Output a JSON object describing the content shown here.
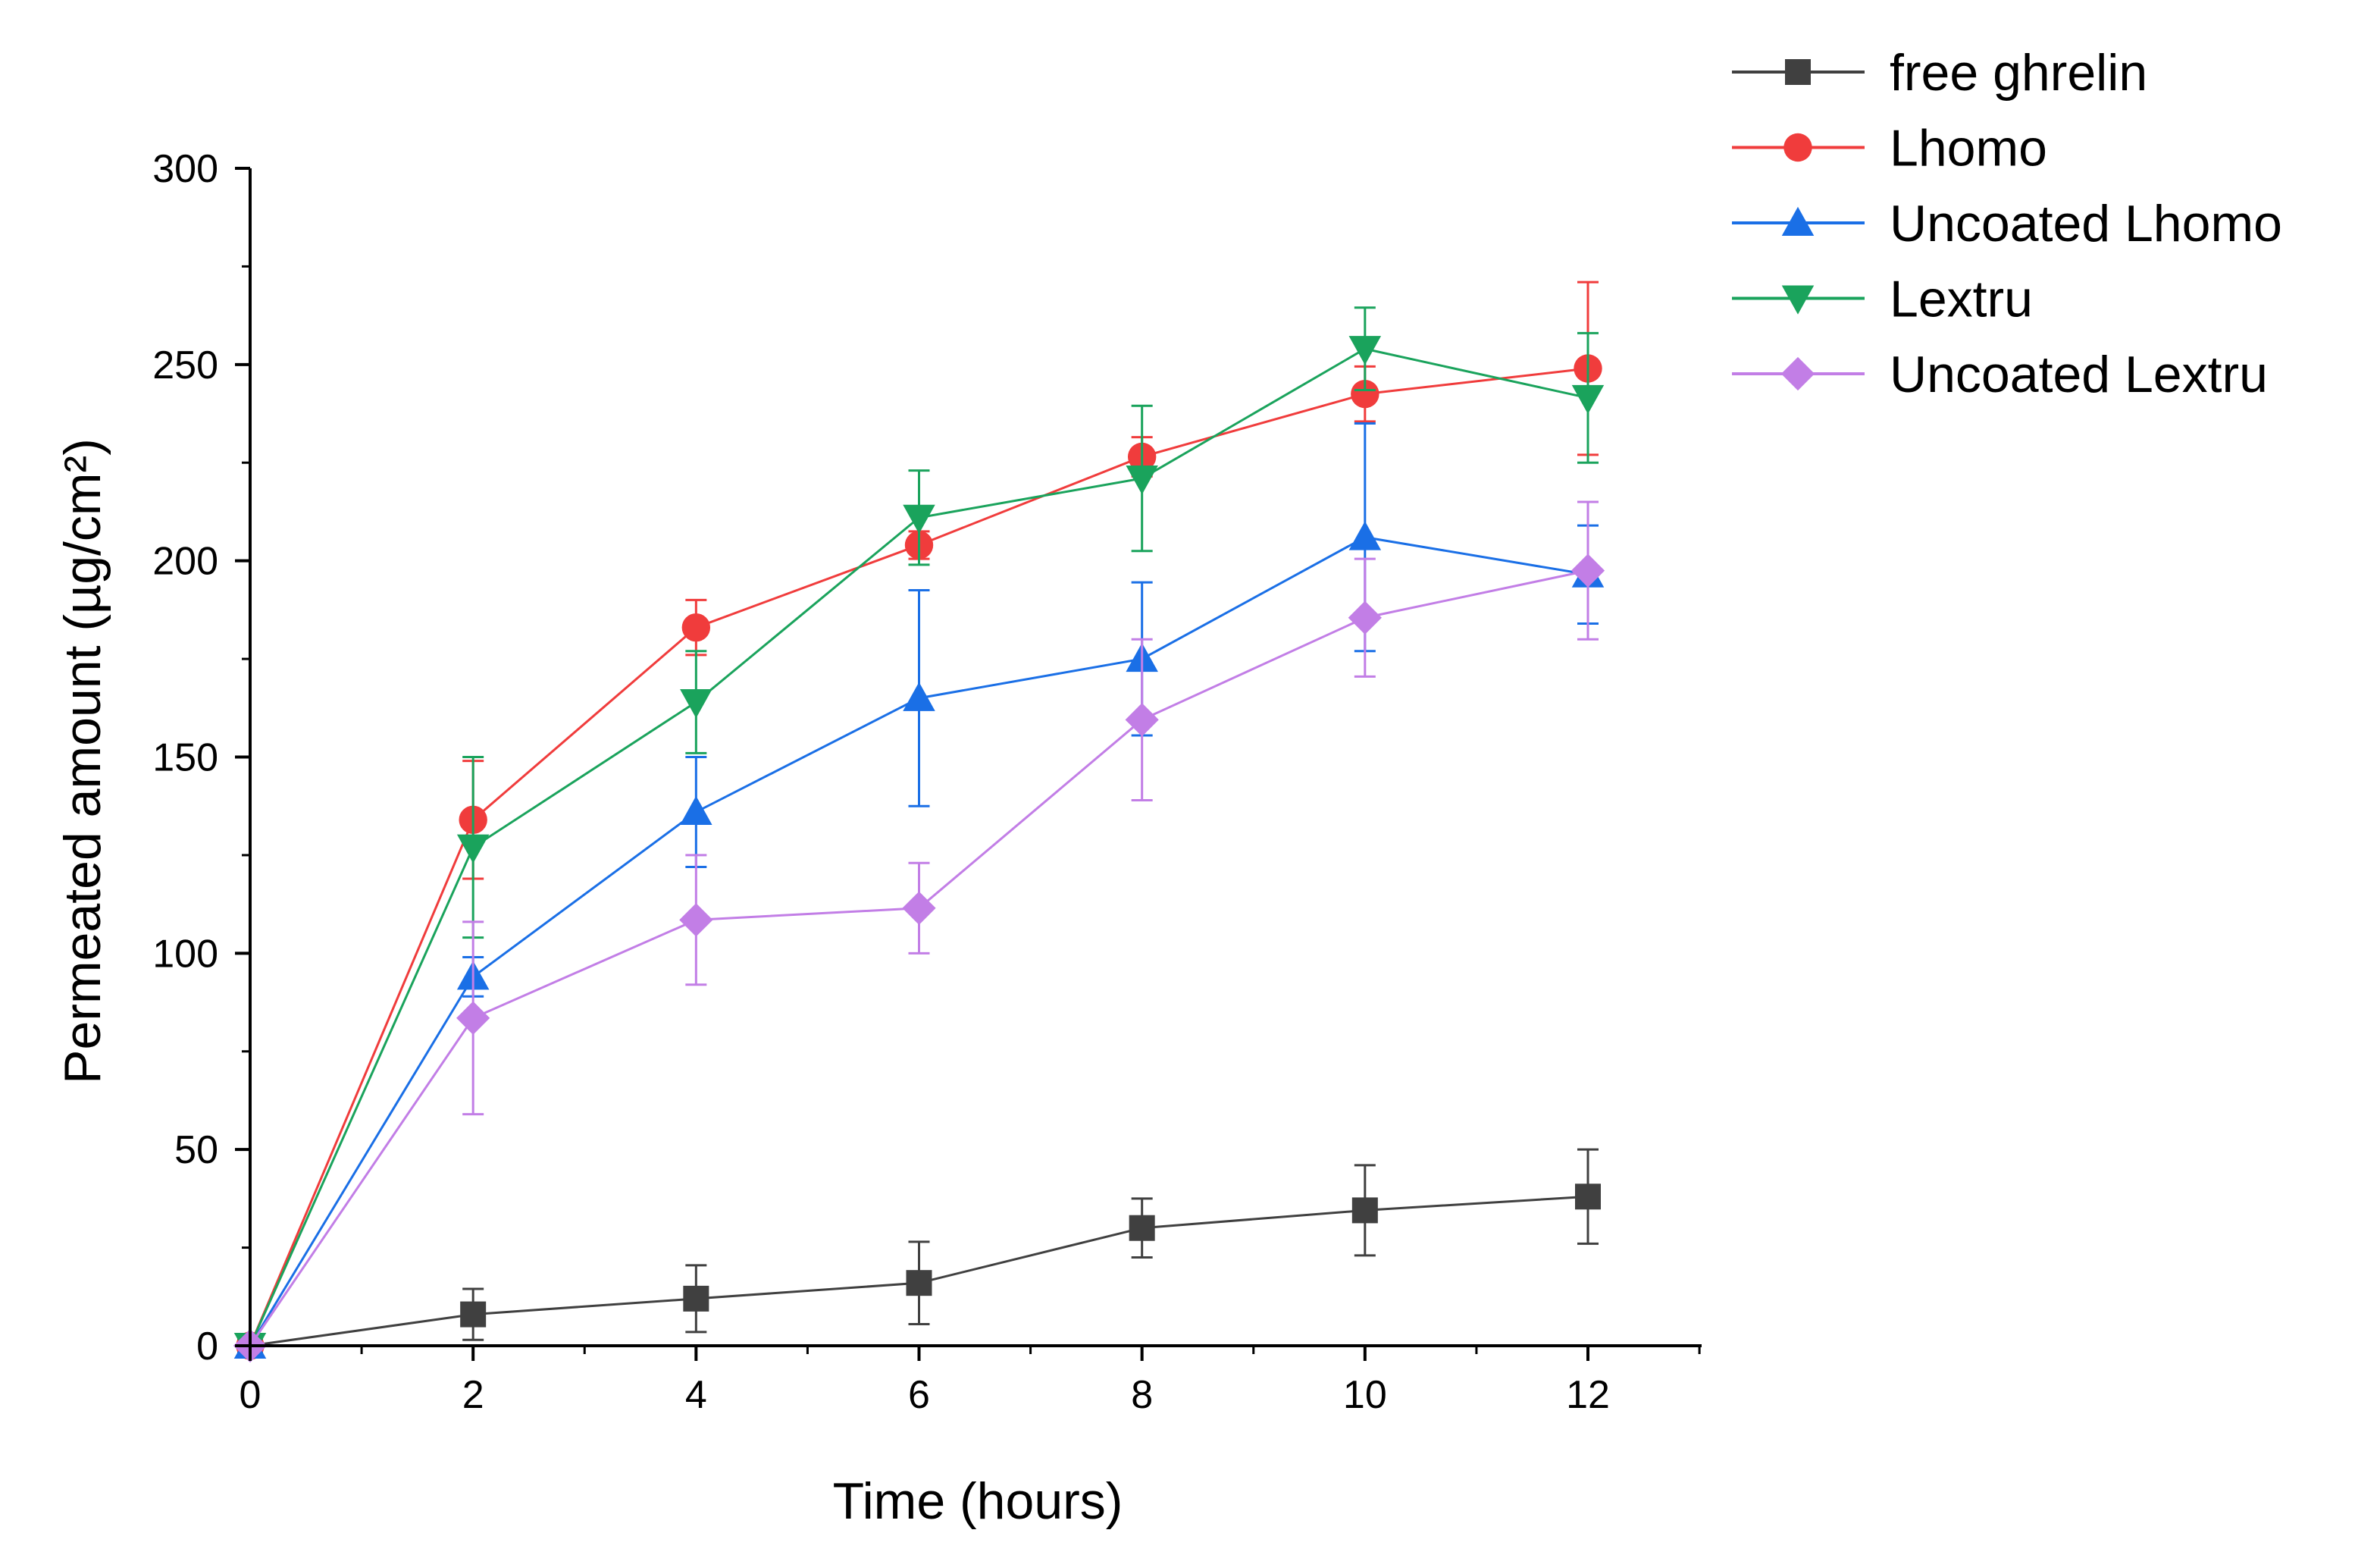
{
  "chart_data": {
    "type": "line",
    "title": "",
    "xlabel": "Time (hours)",
    "ylabel": "Permeated amount (µg/cm²)",
    "xlim": [
      0,
      13
    ],
    "ylim": [
      0,
      300
    ],
    "x_ticks": [
      0,
      2,
      4,
      6,
      8,
      10,
      12
    ],
    "x_tick_labels": [
      "0",
      "2",
      "4",
      "6",
      "8",
      "10",
      "12"
    ],
    "y_ticks": [
      0,
      50,
      100,
      150,
      200,
      250,
      300
    ],
    "y_tick_labels": [
      "0",
      "50",
      "100",
      "150",
      "200",
      "250",
      "300"
    ],
    "legend_position": "top-right",
    "x": [
      0,
      2,
      4,
      6,
      8,
      10,
      12
    ],
    "series": [
      {
        "name": "free ghrelin",
        "color": "#404040",
        "marker": "square",
        "values": [
          0,
          8,
          12,
          16,
          30,
          34.5,
          38
        ],
        "errors": [
          0,
          6.5,
          8.5,
          10.5,
          7.5,
          11.5,
          12
        ]
      },
      {
        "name": "Lhomo",
        "color": "#f03c3c",
        "marker": "circle",
        "values": [
          0,
          134,
          183,
          204,
          226.5,
          242.5,
          249
        ],
        "errors": [
          0,
          15,
          7,
          3.5,
          5,
          7,
          22
        ]
      },
      {
        "name": "Uncoated Lhomo",
        "color": "#1a6fe6",
        "marker": "triangle-up",
        "values": [
          0,
          94,
          136,
          165,
          175,
          206,
          196.5
        ],
        "errors": [
          0,
          5,
          14,
          27.5,
          19.5,
          29,
          12.5
        ]
      },
      {
        "name": "Lextru",
        "color": "#1aa35c",
        "marker": "triangle-down",
        "values": [
          0,
          127,
          164,
          211,
          221,
          254,
          241.5
        ],
        "errors": [
          0,
          23,
          13,
          12,
          18.5,
          10.5,
          16.5
        ]
      },
      {
        "name": "Uncoated Lextru",
        "color": "#c27ee6",
        "marker": "diamond",
        "values": [
          0,
          83.5,
          108.5,
          111.5,
          159.5,
          185.5,
          197.5
        ],
        "errors": [
          0,
          24.5,
          16.5,
          11.5,
          20.5,
          15,
          17.5
        ]
      }
    ]
  }
}
